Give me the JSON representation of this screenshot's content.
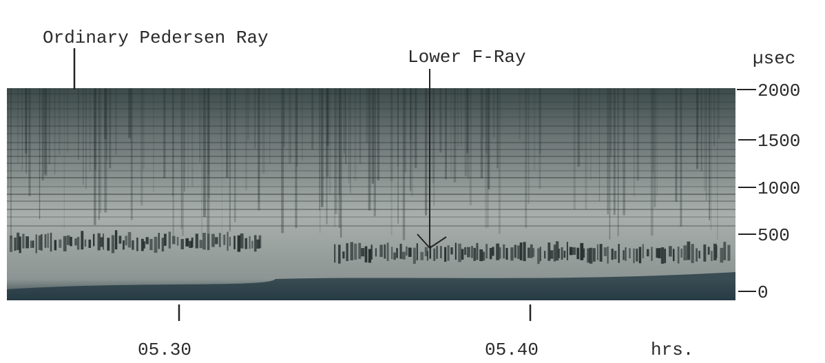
{
  "annotations": {
    "pedersen": "Ordinary Pedersen Ray",
    "lower_f": "Lower F-Ray"
  },
  "y_axis": {
    "unit": "µsec",
    "ticks": [
      "2000",
      "1500",
      "1000",
      "500",
      "0"
    ]
  },
  "x_axis": {
    "ticks": [
      "05.30",
      "05.40"
    ],
    "unit": "hrs."
  }
}
